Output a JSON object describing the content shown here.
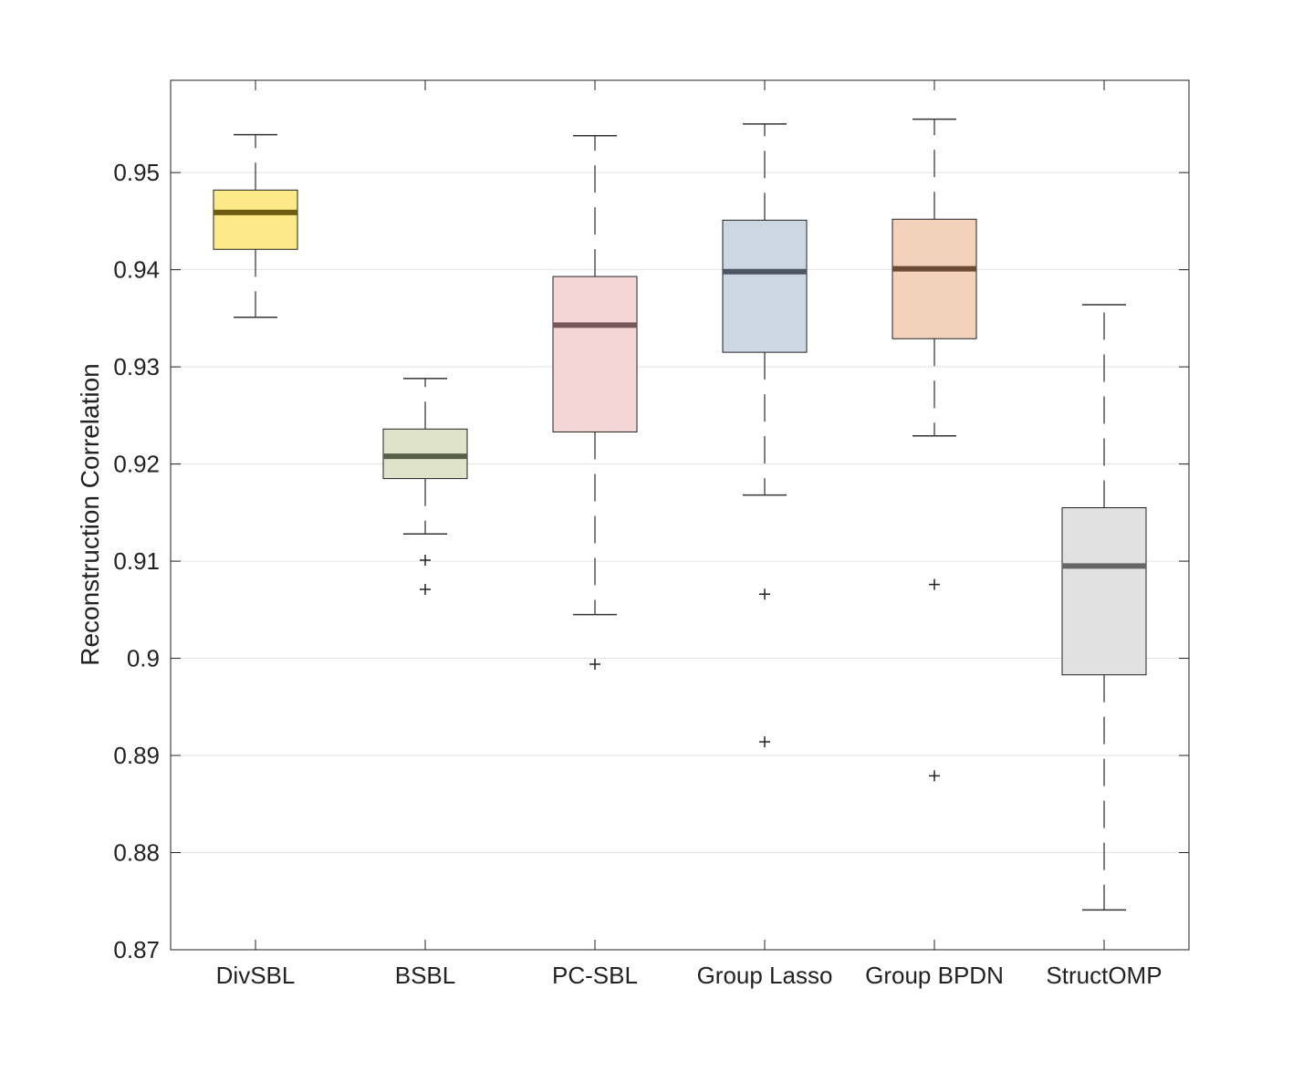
{
  "chart_data": {
    "type": "box",
    "title": "",
    "xlabel": "",
    "ylabel": "Reconstruction Correlation",
    "ylim": [
      0.87,
      0.9595
    ],
    "yticks": [
      0.87,
      0.88,
      0.89,
      0.9,
      0.91,
      0.92,
      0.93,
      0.94,
      0.95
    ],
    "ytick_labels": [
      "0.87",
      "0.88",
      "0.89",
      "0.9",
      "0.91",
      "0.92",
      "0.93",
      "0.94",
      "0.95"
    ],
    "grid": "horizontal",
    "categories": [
      "DivSBL",
      "BSBL",
      "PC-SBL",
      "Group Lasso",
      "Group BPDN",
      "StructOMP"
    ],
    "series": [
      {
        "name": "DivSBL",
        "whisker_low": 0.9351,
        "q1": 0.9421,
        "median": 0.9459,
        "q3": 0.9482,
        "whisker_high": 0.9539,
        "outliers": [],
        "box_color": "#FCE98A",
        "median_color": "#6E5D10"
      },
      {
        "name": "BSBL",
        "whisker_low": 0.9128,
        "q1": 0.9185,
        "median": 0.9208,
        "q3": 0.9236,
        "whisker_high": 0.9288,
        "outliers": [
          0.9101,
          0.9071
        ],
        "box_color": "#DEE3C9",
        "median_color": "#59604A"
      },
      {
        "name": "PC-SBL",
        "whisker_low": 0.9045,
        "q1": 0.9233,
        "median": 0.9343,
        "q3": 0.9393,
        "whisker_high": 0.9538,
        "outliers": [
          0.8994
        ],
        "box_color": "#F5D6D6",
        "median_color": "#76565A"
      },
      {
        "name": "Group Lasso",
        "whisker_low": 0.9168,
        "q1": 0.9315,
        "median": 0.9398,
        "q3": 0.9451,
        "whisker_high": 0.955,
        "outliers": [
          0.9066,
          0.8914
        ],
        "box_color": "#CDD7E2",
        "median_color": "#4C5561"
      },
      {
        "name": "Group BPDN",
        "whisker_low": 0.9229,
        "q1": 0.9329,
        "median": 0.9401,
        "q3": 0.9452,
        "whisker_high": 0.9555,
        "outliers": [
          0.9076,
          0.8879
        ],
        "box_color": "#F2D2BA",
        "median_color": "#6B4A35"
      },
      {
        "name": "StructOMP",
        "whisker_low": 0.8741,
        "q1": 0.8983,
        "median": 0.9095,
        "q3": 0.9155,
        "whisker_high": 0.9364,
        "outliers": [],
        "box_color": "#E1E1E1",
        "median_color": "#666666"
      }
    ]
  }
}
